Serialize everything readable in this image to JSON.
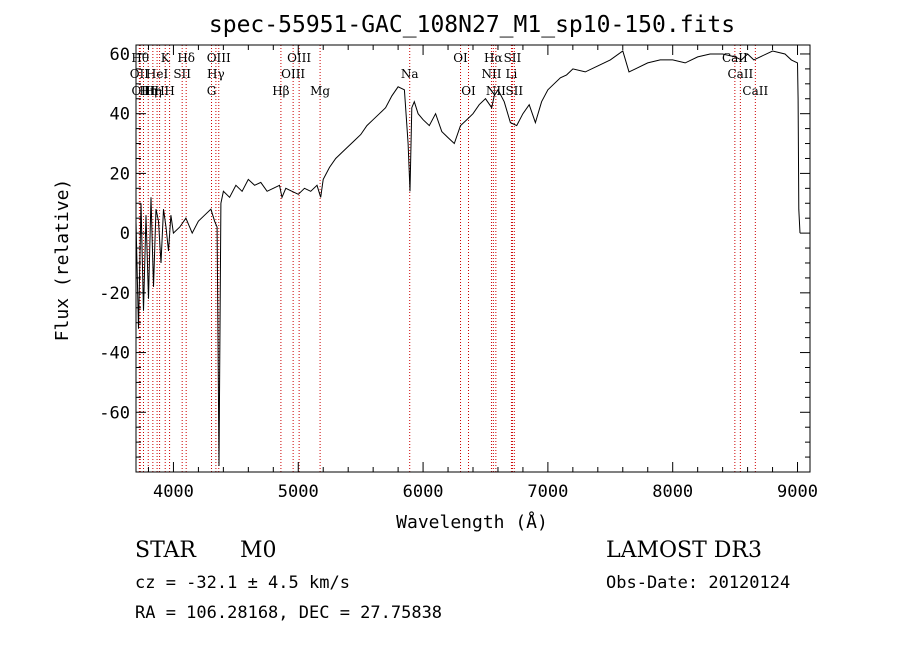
{
  "chart_data": {
    "type": "line",
    "title": "spec-55951-GAC_108N27_M1_sp10-150.fits",
    "xlabel": "Wavelength (Å)",
    "ylabel": "Flux (relative)",
    "xlim": [
      3700,
      9100
    ],
    "ylim": [
      -80,
      63
    ],
    "x_ticks": [
      4000,
      5000,
      6000,
      7000,
      8000,
      9000
    ],
    "y_ticks": [
      -60,
      -40,
      -20,
      0,
      20,
      40,
      60
    ],
    "grid": false,
    "series": [
      {
        "name": "spectrum",
        "x": [
          3700,
          3720,
          3740,
          3760,
          3780,
          3800,
          3820,
          3840,
          3860,
          3880,
          3900,
          3920,
          3940,
          3960,
          3980,
          4000,
          4050,
          4100,
          4150,
          4200,
          4250,
          4300,
          4330,
          4350,
          4365,
          4380,
          4400,
          4450,
          4500,
          4550,
          4600,
          4650,
          4700,
          4750,
          4800,
          4850,
          4870,
          4900,
          4950,
          5000,
          5050,
          5100,
          5150,
          5180,
          5200,
          5250,
          5300,
          5350,
          5400,
          5450,
          5500,
          5550,
          5600,
          5650,
          5700,
          5750,
          5800,
          5850,
          5880,
          5895,
          5910,
          5930,
          5960,
          6000,
          6050,
          6100,
          6150,
          6200,
          6250,
          6300,
          6350,
          6400,
          6450,
          6500,
          6550,
          6570,
          6600,
          6650,
          6700,
          6750,
          6800,
          6850,
          6900,
          6950,
          7000,
          7050,
          7100,
          7150,
          7200,
          7300,
          7400,
          7500,
          7600,
          7650,
          7700,
          7800,
          7900,
          8000,
          8100,
          8200,
          8300,
          8400,
          8500,
          8550,
          8600,
          8650,
          8700,
          8800,
          8900,
          8950,
          9000,
          9005,
          9010,
          9020
        ],
        "y": [
          4,
          -32,
          10,
          -26,
          6,
          -22,
          12,
          -18,
          8,
          4,
          -10,
          8,
          2,
          -6,
          6,
          0,
          2,
          5,
          0,
          4,
          6,
          8,
          4,
          2,
          -78,
          10,
          14,
          12,
          16,
          14,
          18,
          16,
          17,
          14,
          15,
          16,
          12,
          15,
          14,
          13,
          15,
          14,
          16,
          12,
          18,
          22,
          25,
          27,
          29,
          31,
          33,
          36,
          38,
          40,
          42,
          46,
          49,
          48,
          30,
          14,
          42,
          44,
          40,
          38,
          36,
          40,
          34,
          32,
          30,
          36,
          38,
          40,
          43,
          45,
          42,
          46,
          48,
          44,
          37,
          36,
          40,
          43,
          37,
          44,
          48,
          50,
          52,
          53,
          55,
          54,
          56,
          58,
          61,
          54,
          55,
          57,
          58,
          58,
          57,
          59,
          60,
          60,
          59,
          58,
          60,
          58,
          59,
          61,
          60,
          58,
          57,
          45,
          8,
          0
        ]
      }
    ],
    "lines": [
      {
        "wave": 3734,
        "label": "Hθ",
        "row": 1
      },
      {
        "wave": 3727,
        "label": "OII",
        "row": 2
      },
      {
        "wave": 3760,
        "label": "OIII",
        "row": 3
      },
      {
        "wave": 3798,
        "label": "Hη",
        "row": 3
      },
      {
        "wave": 3835,
        "label": "Hη",
        "row": 3
      },
      {
        "wave": 3869,
        "label": "HeI",
        "row": 2
      },
      {
        "wave": 3889,
        "label": "H",
        "row": 3
      },
      {
        "wave": 3934,
        "label": "K",
        "row": 1
      },
      {
        "wave": 3969,
        "label": "H",
        "row": 3
      },
      {
        "wave": 4070,
        "label": "SII",
        "row": 2
      },
      {
        "wave": 4102,
        "label": "Hδ",
        "row": 1
      },
      {
        "wave": 4305,
        "label": "G",
        "row": 3
      },
      {
        "wave": 4340,
        "label": "Hγ",
        "row": 2
      },
      {
        "wave": 4363,
        "label": "OIII",
        "row": 1
      },
      {
        "wave": 4861,
        "label": "Hβ",
        "row": 3
      },
      {
        "wave": 4959,
        "label": "OIII",
        "row": 2
      },
      {
        "wave": 5007,
        "label": "OIII",
        "row": 1
      },
      {
        "wave": 5175,
        "label": "Mg",
        "row": 3
      },
      {
        "wave": 5893,
        "label": "Na",
        "row": 2
      },
      {
        "wave": 6300,
        "label": "OI",
        "row": 1
      },
      {
        "wave": 6364,
        "label": "OI",
        "row": 3
      },
      {
        "wave": 6548,
        "label": "NII",
        "row": 2
      },
      {
        "wave": 6563,
        "label": "Hα",
        "row": 1
      },
      {
        "wave": 6583,
        "label": "NII",
        "row": 3
      },
      {
        "wave": 6708,
        "label": "Li",
        "row": 2
      },
      {
        "wave": 6716,
        "label": "SII",
        "row": 1
      },
      {
        "wave": 6731,
        "label": "SII",
        "row": 3
      },
      {
        "wave": 8498,
        "label": "CaII",
        "row": 1
      },
      {
        "wave": 8542,
        "label": "CaII",
        "row": 2
      },
      {
        "wave": 8662,
        "label": "CaII",
        "row": 3
      }
    ]
  },
  "info": {
    "object_class": "STAR",
    "subclass": "M0",
    "survey": "LAMOST DR3",
    "cz": "cz = -32.1 ± 4.5 km/s",
    "obs_date": "Obs-Date: 20120124",
    "coords": "RA = 106.28168, DEC =  27.75838"
  },
  "colors": {
    "line_marker": "#cc0000",
    "spectrum": "#000000",
    "axes": "#000000"
  }
}
